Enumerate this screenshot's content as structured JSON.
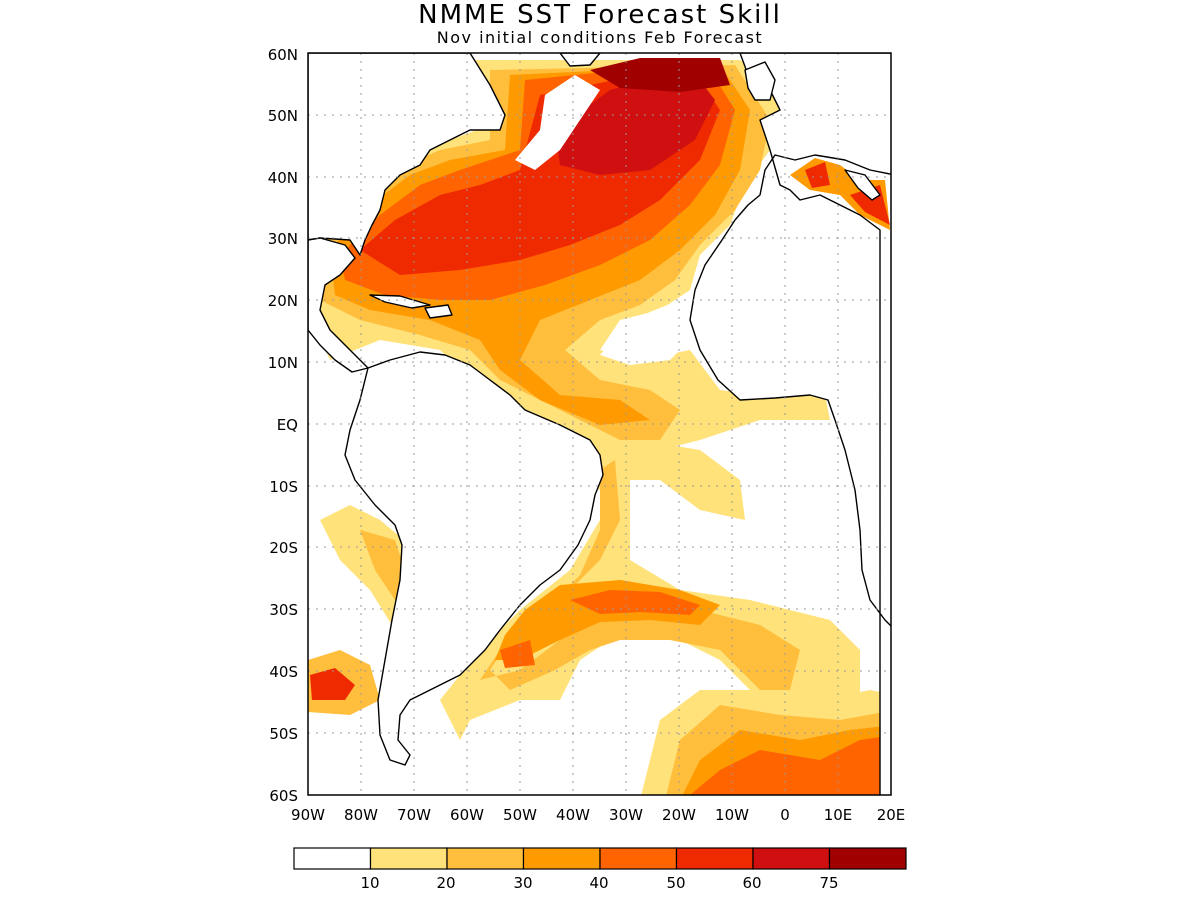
{
  "title": "NMME SST Forecast Skill",
  "subtitle": "Nov initial conditions  Feb Forecast",
  "map": {
    "lat_labels": [
      "60N",
      "50N",
      "40N",
      "30N",
      "20N",
      "10N",
      "EQ",
      "10S",
      "20S",
      "30S",
      "40S",
      "50S",
      "60S"
    ],
    "lon_labels": [
      "90W",
      "80W",
      "70W",
      "60W",
      "50W",
      "40W",
      "30W",
      "20W",
      "10W",
      "0",
      "10E",
      "20E"
    ],
    "lon_range": [
      -90,
      20
    ],
    "lat_range": [
      -60,
      60
    ],
    "gridlines": "dotted"
  },
  "colorbar": {
    "labels": [
      "10",
      "20",
      "30",
      "40",
      "50",
      "60",
      "75"
    ],
    "colors": [
      "#ffffff",
      "#ffe27a",
      "#ffbe3c",
      "#ff9a00",
      "#ff6400",
      "#f02a00",
      "#d01010",
      "#a00000"
    ]
  }
}
